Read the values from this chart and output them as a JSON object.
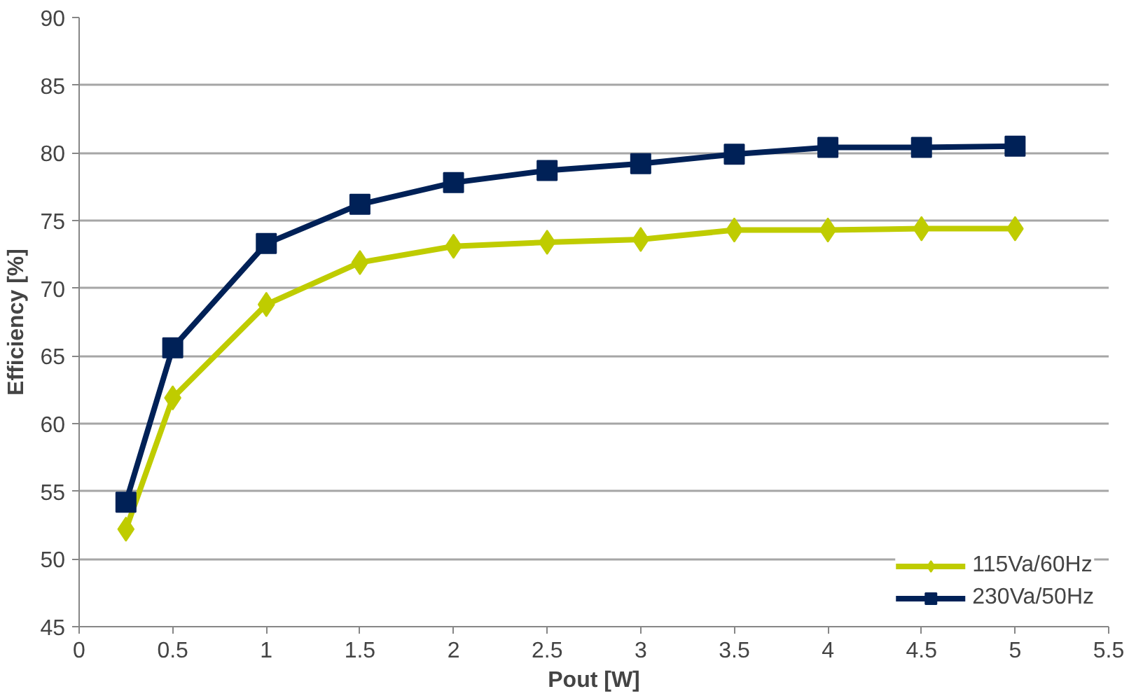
{
  "chart_data": {
    "type": "line",
    "xlabel": "Pout [W]",
    "ylabel": "Efficiency [%]",
    "x": [
      0.25,
      0.5,
      1,
      1.5,
      2,
      2.5,
      3,
      3.5,
      4,
      4.5,
      5
    ],
    "series": [
      {
        "name": "115Va/60Hz",
        "color": "#bfcc00",
        "marker": "diamond",
        "values": [
          52.2,
          61.9,
          68.8,
          71.9,
          73.1,
          73.4,
          73.6,
          74.3,
          74.3,
          74.4,
          74.4
        ]
      },
      {
        "name": "230Va/50Hz",
        "color": "#002157",
        "marker": "square",
        "values": [
          54.2,
          65.6,
          73.3,
          76.2,
          77.8,
          78.7,
          79.2,
          79.9,
          80.4,
          80.4,
          80.5
        ]
      }
    ],
    "xlim": [
      0,
      5.5
    ],
    "xticks": [
      0,
      0.5,
      1,
      1.5,
      2,
      2.5,
      3,
      3.5,
      4,
      4.5,
      5,
      5.5
    ],
    "ylim": [
      45,
      90
    ],
    "yticks": [
      45,
      50,
      55,
      60,
      65,
      70,
      75,
      80,
      85,
      90
    ],
    "grid": "y",
    "legend": "bottom right",
    "line_style": "solid"
  }
}
